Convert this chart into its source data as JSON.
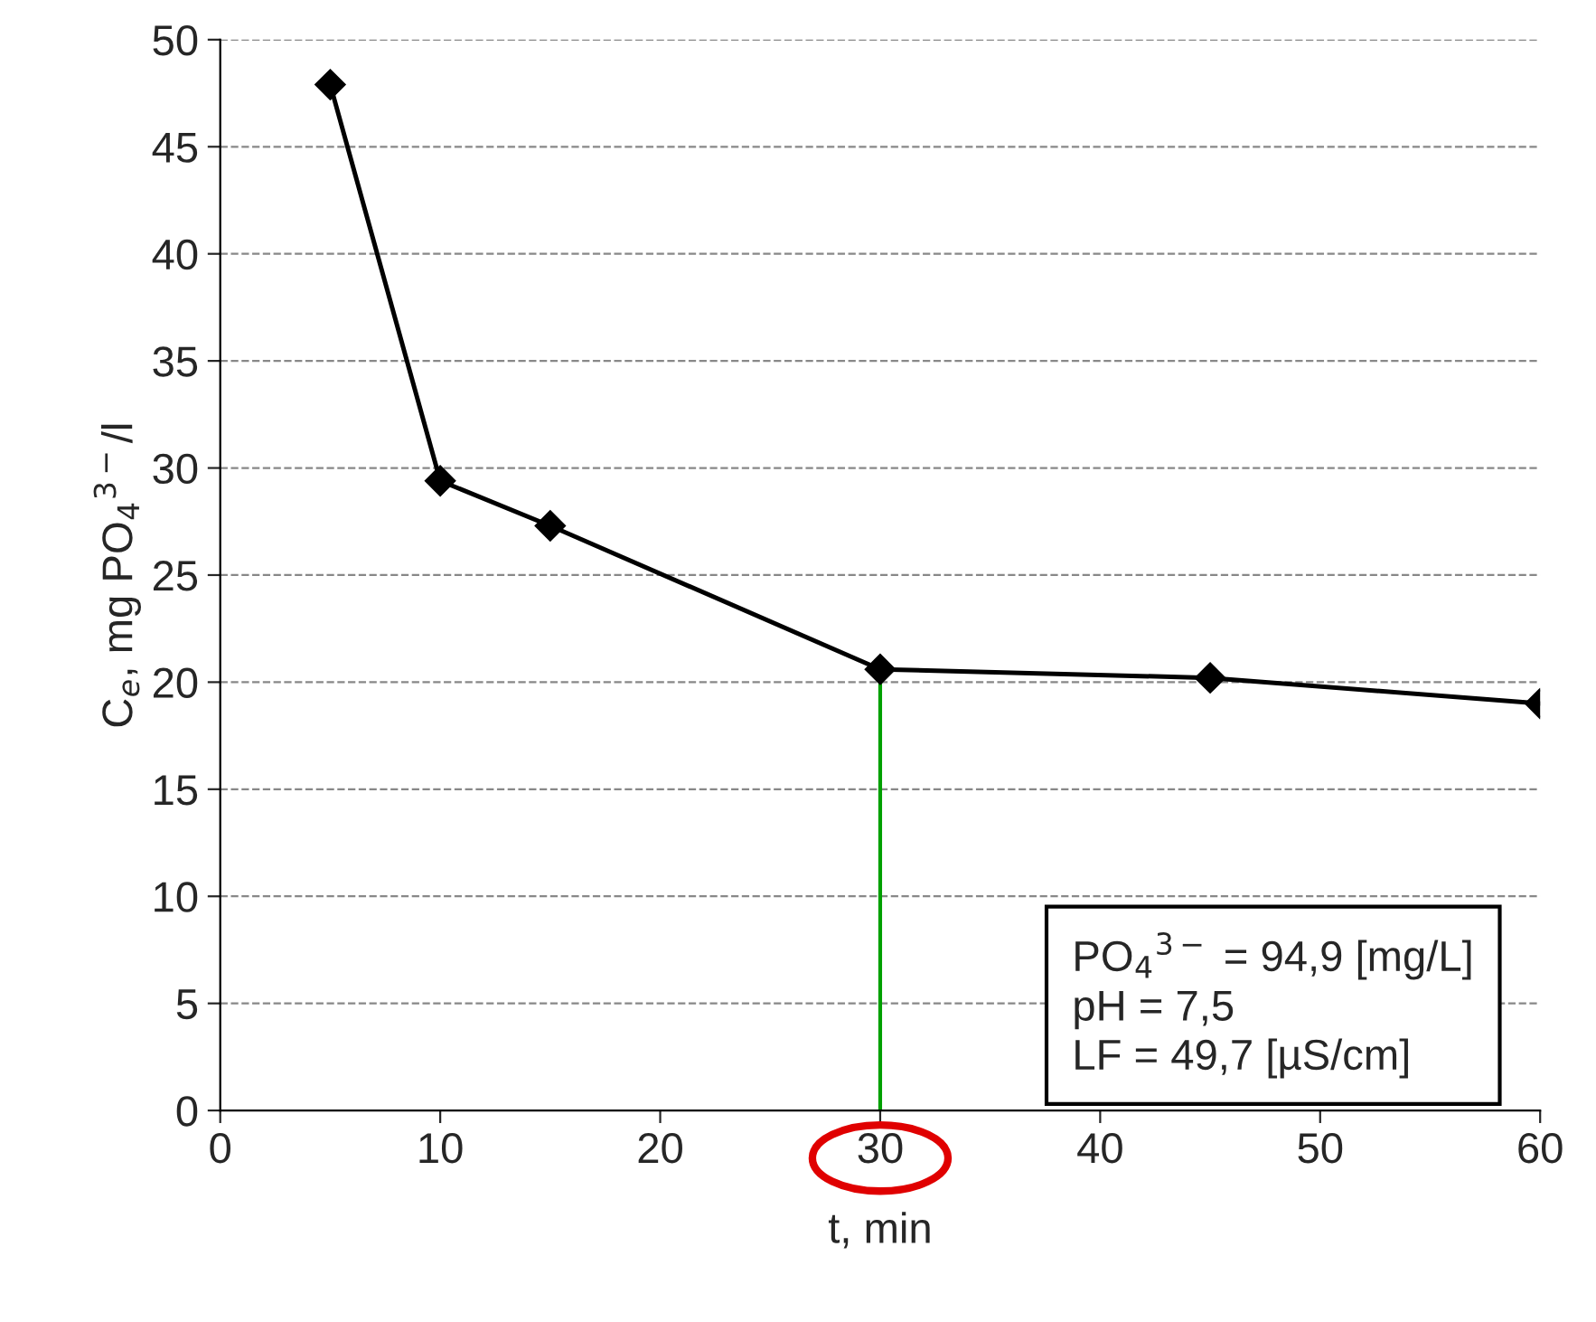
{
  "chart_data": {
    "type": "line",
    "xlabel": "t, min",
    "ylabel": "C$_{e}$, mg PO$_{4}$$^{3−}$/l",
    "x": [
      5,
      10,
      15,
      30,
      45,
      60
    ],
    "series": [
      {
        "color": "#000000",
        "values": [
          47.9,
          29.4,
          27.3,
          20.6,
          20.2,
          19.0
        ]
      }
    ],
    "xlim": [
      0,
      60
    ],
    "xticks": [
      0,
      10,
      20,
      30,
      40,
      50,
      60
    ],
    "ylim": [
      0,
      50
    ],
    "yticks": [
      0,
      5,
      10,
      15,
      20,
      25,
      30,
      35,
      40,
      45,
      50
    ],
    "grid": "y",
    "marker": "diamond",
    "line_style": "solid",
    "legend": false,
    "ref_lines": [
      {
        "axis": "x",
        "value": 30,
        "color": "#00a000"
      }
    ],
    "annotations": [
      "PO$_{4}$$^{3−}$ = 94,9 [mg/L]\npH = 7,5\nLF = 49,7 [µS/cm]"
    ]
  }
}
